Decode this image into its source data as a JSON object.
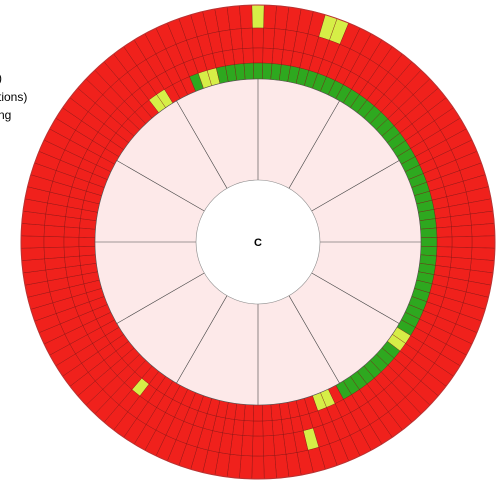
{
  "legend": [
    ")",
    "tions)",
    "ng"
  ],
  "center_label": "C"
}
